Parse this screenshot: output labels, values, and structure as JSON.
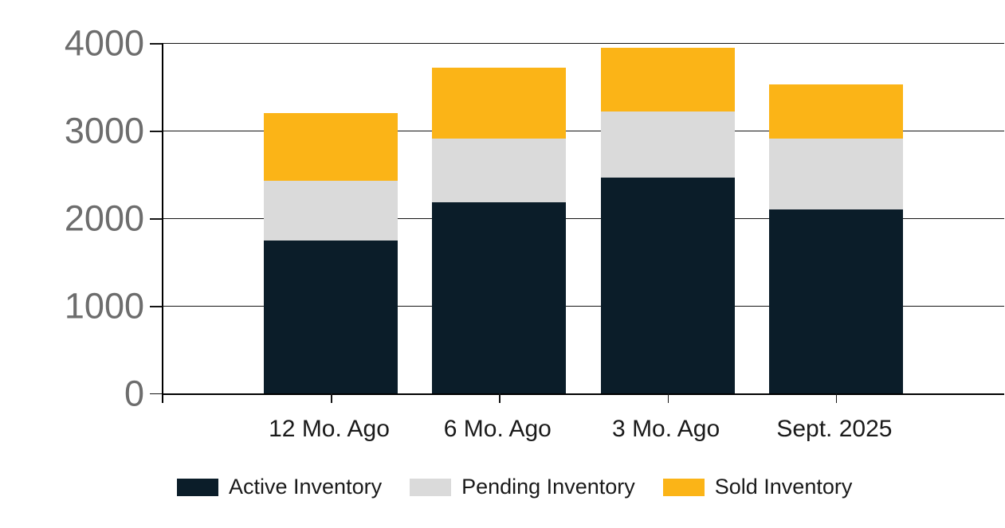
{
  "chart_data": {
    "type": "bar",
    "stacked": true,
    "title": "",
    "xlabel": "",
    "ylabel": "",
    "categories": [
      "12 Mo. Ago",
      "6 Mo. Ago",
      "3 Mo. Ago",
      "Sept. 2025"
    ],
    "series": [
      {
        "name": "Active Inventory",
        "color": "#0b1d29",
        "values": [
          1750,
          2180,
          2460,
          2100
        ]
      },
      {
        "name": "Pending Inventory",
        "color": "#dadada",
        "values": [
          680,
          725,
          760,
          810
        ]
      },
      {
        "name": "Sold Inventory",
        "color": "#fbb417",
        "values": [
          770,
          815,
          730,
          620
        ]
      }
    ],
    "ylim": [
      0,
      4000
    ],
    "yticks": [
      0,
      1000,
      2000,
      3000,
      4000
    ],
    "ytick_labels": [
      "0",
      "1000",
      "2000",
      "3000",
      "4000"
    ],
    "grid": true,
    "legend_position": "bottom"
  },
  "colors": {
    "axis": "#000000",
    "gridline": "#141414",
    "y_tick_label": "#6d6d6d",
    "x_tick_label": "#1a1a1a",
    "legend_text": "#1a1a1a",
    "background": "#ffffff"
  }
}
